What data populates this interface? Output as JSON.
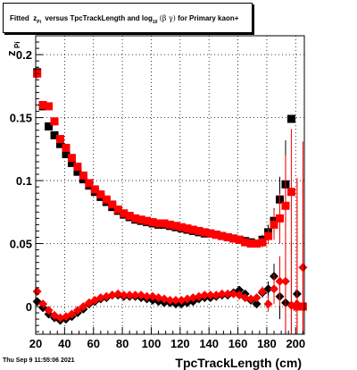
{
  "title_parts": {
    "fitted": "Fitted",
    "z": "z",
    "z_sub": "Pi",
    "versus": "versus TpcTrackLength and log",
    "log_sub": "10",
    "beta_gamma": "(β  γ)",
    "tail": "for Primary kaon+"
  },
  "date_stamp": "Thu Sep  9 11:55:06 2021",
  "chart_data": {
    "type": "scatter",
    "title": "Fitted zPi versus TpcTrackLength and log10 (β γ) for Primary kaon+",
    "xlabel": "TpcTrackLength (cm)",
    "ylabel": "z",
    "ylabel_sub": "Pi",
    "xlim": [
      20,
      206
    ],
    "ylim": [
      -0.022,
      0.215
    ],
    "x_ticks": [
      20,
      40,
      60,
      80,
      100,
      120,
      140,
      160,
      180,
      200
    ],
    "y_ticks": [
      0,
      0.05,
      0.1,
      0.15,
      0.2
    ],
    "y_tick_labels": [
      "0",
      "0.05",
      "0.1",
      "0.15",
      "0.2"
    ],
    "grid": true,
    "colors": {
      "black_series": "#000000",
      "red_series": "#ff0000"
    },
    "series": [
      {
        "color": "black",
        "marker": "square",
        "x": [
          21,
          25,
          29,
          33,
          37,
          41,
          45,
          49,
          53,
          57,
          61,
          65,
          69,
          73,
          77,
          81,
          85,
          89,
          93,
          97,
          101,
          105,
          109,
          113,
          117,
          121,
          125,
          129,
          133,
          137,
          141,
          145,
          149,
          153,
          157,
          161,
          165,
          169,
          173,
          177,
          181,
          185,
          189,
          193,
          197
        ],
        "y": [
          0.186,
          0.159,
          0.143,
          0.136,
          0.129,
          0.121,
          0.114,
          0.107,
          0.101,
          0.096,
          0.091,
          0.087,
          0.083,
          0.079,
          0.076,
          0.073,
          0.071,
          0.069,
          0.068,
          0.067,
          0.066,
          0.065,
          0.065,
          0.064,
          0.063,
          0.062,
          0.061,
          0.06,
          0.059,
          0.058,
          0.058,
          0.057,
          0.056,
          0.055,
          0.054,
          0.053,
          0.052,
          0.051,
          0.05,
          0.053,
          0.059,
          0.068,
          0.085,
          0.097,
          0.149
        ],
        "yerr": [
          0.004,
          0.002,
          0.002,
          0.002,
          0.002,
          0.001,
          0.001,
          0.001,
          0.001,
          0.001,
          0.001,
          0.001,
          0.001,
          0.001,
          0.001,
          0.001,
          0.001,
          0.001,
          0.001,
          0.001,
          0.001,
          0.001,
          0.001,
          0.001,
          0.001,
          0.001,
          0.001,
          0.001,
          0.001,
          0.001,
          0.001,
          0.001,
          0.001,
          0.001,
          0.001,
          0.002,
          0.002,
          0.002,
          0.003,
          0.004,
          0.006,
          0.01,
          0.018,
          0.035,
          0.0
        ]
      },
      {
        "color": "red",
        "marker": "square",
        "x": [
          21,
          25,
          29,
          33,
          37,
          41,
          45,
          49,
          53,
          57,
          61,
          65,
          69,
          73,
          77,
          81,
          85,
          89,
          93,
          97,
          101,
          105,
          109,
          113,
          117,
          121,
          125,
          129,
          133,
          137,
          141,
          145,
          149,
          153,
          157,
          161,
          165,
          169,
          173,
          177,
          181,
          185,
          189,
          193,
          197,
          201,
          205
        ],
        "y": [
          0.185,
          0.16,
          0.159,
          0.147,
          0.133,
          0.126,
          0.118,
          0.111,
          0.104,
          0.098,
          0.093,
          0.089,
          0.085,
          0.081,
          0.077,
          0.074,
          0.072,
          0.07,
          0.069,
          0.068,
          0.067,
          0.066,
          0.066,
          0.065,
          0.064,
          0.063,
          0.062,
          0.061,
          0.06,
          0.059,
          0.058,
          0.057,
          0.056,
          0.055,
          0.054,
          0.053,
          0.051,
          0.05,
          0.05,
          0.051,
          0.056,
          0.065,
          0.07,
          0.08,
          0.091,
          0.0,
          0.0
        ],
        "yerr": [
          0.004,
          0.002,
          0.002,
          0.002,
          0.002,
          0.001,
          0.001,
          0.001,
          0.001,
          0.001,
          0.001,
          0.001,
          0.001,
          0.001,
          0.001,
          0.001,
          0.001,
          0.001,
          0.001,
          0.001,
          0.001,
          0.001,
          0.001,
          0.001,
          0.001,
          0.001,
          0.001,
          0.001,
          0.001,
          0.001,
          0.001,
          0.001,
          0.001,
          0.001,
          0.001,
          0.002,
          0.002,
          0.002,
          0.003,
          0.004,
          0.006,
          0.012,
          0.02,
          0.04,
          0.05,
          0.1,
          0.1
        ]
      },
      {
        "color": "black",
        "marker": "diamond",
        "x": [
          21,
          25,
          29,
          33,
          37,
          41,
          45,
          49,
          53,
          57,
          61,
          65,
          69,
          73,
          77,
          81,
          85,
          89,
          93,
          97,
          101,
          105,
          109,
          113,
          117,
          121,
          125,
          129,
          133,
          137,
          141,
          145,
          149,
          153,
          157,
          161,
          165,
          169,
          173,
          177,
          181,
          185,
          189,
          193,
          197,
          201
        ],
        "y": [
          0.004,
          -0.001,
          -0.006,
          -0.009,
          -0.011,
          -0.01,
          -0.008,
          -0.005,
          -0.002,
          0.002,
          0.004,
          0.006,
          0.007,
          0.009,
          0.009,
          0.008,
          0.008,
          0.008,
          0.007,
          0.006,
          0.005,
          0.004,
          0.003,
          0.003,
          0.002,
          0.002,
          0.003,
          0.004,
          0.006,
          0.007,
          0.007,
          0.008,
          0.009,
          0.009,
          0.011,
          0.013,
          0.01,
          0.005,
          0.002,
          0.011,
          0.014,
          0.024,
          0.008,
          0.003,
          0.001,
          0.01
        ],
        "yerr": [
          0.003,
          0.002,
          0.001,
          0.001,
          0.001,
          0.001,
          0.001,
          0.001,
          0.001,
          0.001,
          0.001,
          0.001,
          0.001,
          0.001,
          0.001,
          0.001,
          0.001,
          0.001,
          0.001,
          0.001,
          0.001,
          0.001,
          0.001,
          0.001,
          0.001,
          0.001,
          0.001,
          0.001,
          0.001,
          0.001,
          0.001,
          0.001,
          0.001,
          0.001,
          0.001,
          0.002,
          0.002,
          0.002,
          0.003,
          0.004,
          0.006,
          0.01,
          0.018,
          0.035,
          0.05,
          0.0
        ]
      },
      {
        "color": "red",
        "marker": "diamond",
        "x": [
          21,
          25,
          29,
          33,
          37,
          41,
          45,
          49,
          53,
          57,
          61,
          65,
          69,
          73,
          77,
          81,
          85,
          89,
          93,
          97,
          101,
          105,
          109,
          113,
          117,
          121,
          125,
          129,
          133,
          137,
          141,
          145,
          149,
          153,
          157,
          161,
          165,
          169,
          173,
          177,
          181,
          185,
          189,
          193,
          197,
          201,
          205
        ],
        "y": [
          0.012,
          0.002,
          -0.003,
          -0.007,
          -0.009,
          -0.008,
          -0.006,
          -0.003,
          0.0,
          0.003,
          0.005,
          0.007,
          0.008,
          0.009,
          0.01,
          0.009,
          0.009,
          0.009,
          0.009,
          0.008,
          0.008,
          0.007,
          0.006,
          0.005,
          0.005,
          0.005,
          0.006,
          0.007,
          0.008,
          0.009,
          0.009,
          0.009,
          0.01,
          0.01,
          0.01,
          0.009,
          0.007,
          0.006,
          0.007,
          0.012,
          0.002,
          0.014,
          0.02,
          0.02,
          0.001,
          0.002,
          0.031
        ],
        "yerr": [
          0.003,
          0.002,
          0.001,
          0.001,
          0.001,
          0.001,
          0.001,
          0.001,
          0.001,
          0.001,
          0.001,
          0.001,
          0.001,
          0.001,
          0.001,
          0.001,
          0.001,
          0.001,
          0.001,
          0.001,
          0.001,
          0.001,
          0.001,
          0.001,
          0.001,
          0.001,
          0.001,
          0.001,
          0.001,
          0.001,
          0.001,
          0.001,
          0.001,
          0.001,
          0.001,
          0.002,
          0.002,
          0.002,
          0.003,
          0.004,
          0.006,
          0.012,
          0.02,
          0.04,
          0.05,
          0.1,
          0.1
        ]
      }
    ]
  }
}
